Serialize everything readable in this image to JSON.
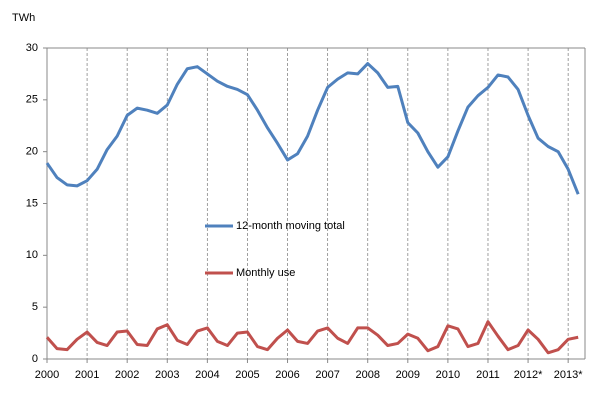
{
  "chart_data": {
    "type": "line",
    "y_label": "TWh",
    "x": [
      2000,
      2000.25,
      2000.5,
      2000.75,
      2001,
      2001.25,
      2001.5,
      2001.75,
      2002,
      2002.25,
      2002.5,
      2002.75,
      2003,
      2003.25,
      2003.5,
      2003.75,
      2004,
      2004.25,
      2004.5,
      2004.75,
      2005,
      2005.25,
      2005.5,
      2005.75,
      2006,
      2006.25,
      2006.5,
      2006.75,
      2007,
      2007.25,
      2007.5,
      2007.75,
      2008,
      2008.25,
      2008.5,
      2008.75,
      2009,
      2009.25,
      2009.5,
      2009.75,
      2010,
      2010.25,
      2010.5,
      2010.75,
      2011,
      2011.25,
      2011.5,
      2011.75,
      2012,
      2012.25,
      2012.5,
      2012.75,
      2013,
      2013.25
    ],
    "series": [
      {
        "name": "12-month moving total",
        "color": "#4f81bd",
        "values": [
          18.9,
          17.5,
          16.8,
          16.7,
          17.2,
          18.3,
          20.2,
          21.5,
          23.5,
          24.2,
          24.0,
          23.7,
          24.5,
          26.5,
          28.0,
          28.2,
          27.5,
          26.8,
          26.3,
          26.0,
          25.5,
          24.0,
          22.3,
          20.8,
          19.2,
          19.8,
          21.5,
          24.0,
          26.2,
          27.0,
          27.6,
          27.5,
          28.5,
          27.6,
          26.2,
          26.3,
          22.8,
          21.8,
          20.0,
          18.5,
          19.5,
          22.0,
          24.3,
          25.4,
          26.2,
          27.4,
          27.2,
          26.0,
          23.5,
          21.3,
          20.5,
          20.0,
          18.3,
          15.9
        ]
      },
      {
        "name": "Monthly use",
        "color": "#c0504d",
        "values": [
          2.1,
          1.0,
          0.9,
          1.9,
          2.6,
          1.6,
          1.3,
          2.6,
          2.7,
          1.4,
          1.3,
          2.9,
          3.3,
          1.8,
          1.4,
          2.7,
          3.0,
          1.7,
          1.3,
          2.5,
          2.6,
          1.2,
          0.9,
          2.0,
          2.8,
          1.7,
          1.5,
          2.7,
          3.0,
          2.0,
          1.5,
          3.0,
          3.0,
          2.3,
          1.3,
          1.5,
          2.4,
          2.0,
          0.8,
          1.2,
          3.2,
          2.9,
          1.2,
          1.5,
          3.6,
          2.2,
          0.9,
          1.3,
          2.8,
          1.9,
          0.6,
          0.9,
          1.9,
          2.1
        ]
      }
    ],
    "xlim": [
      2000,
      2013.42
    ],
    "xticks": [
      2000,
      2001,
      2002,
      2003,
      2004,
      2005,
      2006,
      2007,
      2008,
      2009,
      2010,
      2011,
      {
        "value": 2012,
        "label": "2012*"
      },
      {
        "value": 2013,
        "label": "2013*"
      }
    ],
    "ylim": [
      0,
      30
    ],
    "yticks": [
      0,
      5,
      10,
      15,
      20,
      25,
      30
    ],
    "grid": "x"
  }
}
